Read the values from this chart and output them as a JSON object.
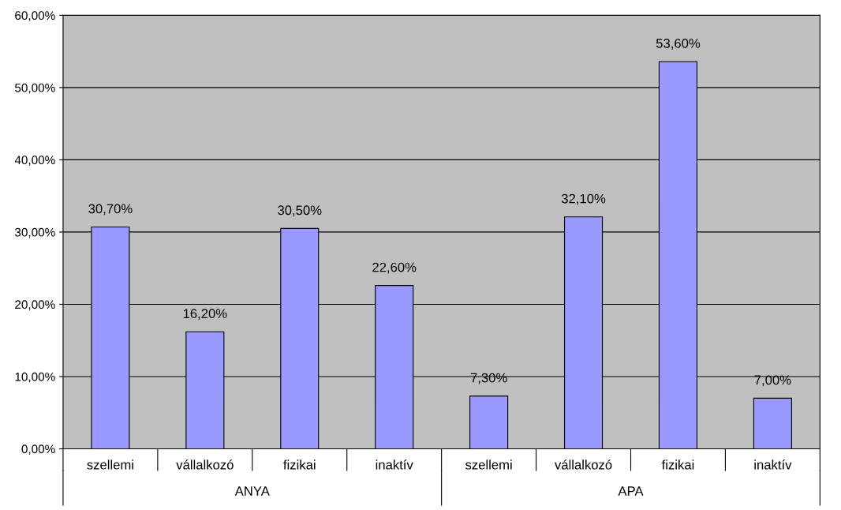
{
  "chart_data": {
    "type": "bar",
    "categories": [
      "szellemi",
      "vállalkozó",
      "fizikai",
      "inaktív",
      "szellemi",
      "vállalkozó",
      "fizikai",
      "inaktív"
    ],
    "values": [
      30.7,
      16.2,
      30.5,
      22.6,
      7.3,
      32.1,
      53.6,
      7.0
    ],
    "value_labels": [
      "30,70%",
      "16,20%",
      "30,50%",
      "22,60%",
      "7,30%",
      "32,10%",
      "53,60%",
      "7,00%"
    ],
    "color": "#9999ff",
    "ylim": [
      0,
      60
    ],
    "yticks": [
      {
        "value": 0,
        "label": "0,00%"
      },
      {
        "value": 10,
        "label": "10,00%"
      },
      {
        "value": 20,
        "label": "20,00%"
      },
      {
        "value": 30,
        "label": "30,00%"
      },
      {
        "value": 40,
        "label": "40,00%"
      },
      {
        "value": 50,
        "label": "50,00%"
      },
      {
        "value": 60,
        "label": "60,00%"
      }
    ],
    "grid": "y",
    "annotations": [
      "ANYA",
      "APA"
    ]
  }
}
